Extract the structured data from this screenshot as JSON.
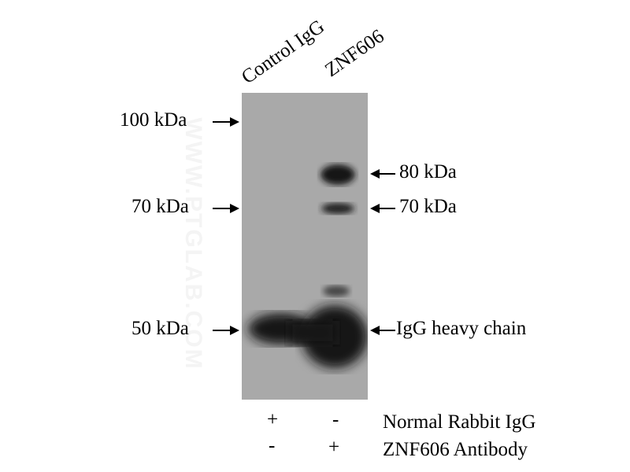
{
  "lanes": [
    "Control IgG",
    "ZNF606"
  ],
  "markers_left": [
    "100 kDa",
    "70 kDa",
    "50 kDa"
  ],
  "markers_right": [
    "80 kDa",
    "70 kDa",
    "IgG heavy chain"
  ],
  "conditions": [
    {
      "label": "Normal Rabbit IgG",
      "lane1": "+",
      "lane2": "-"
    },
    {
      "label": "ZNF606 Antibody",
      "lane1": "-",
      "lane2": "+"
    }
  ],
  "watermark": "WWW.PTGLAB.COM",
  "colors": {
    "membrane": "#a9a9a9",
    "band": "#151515"
  }
}
